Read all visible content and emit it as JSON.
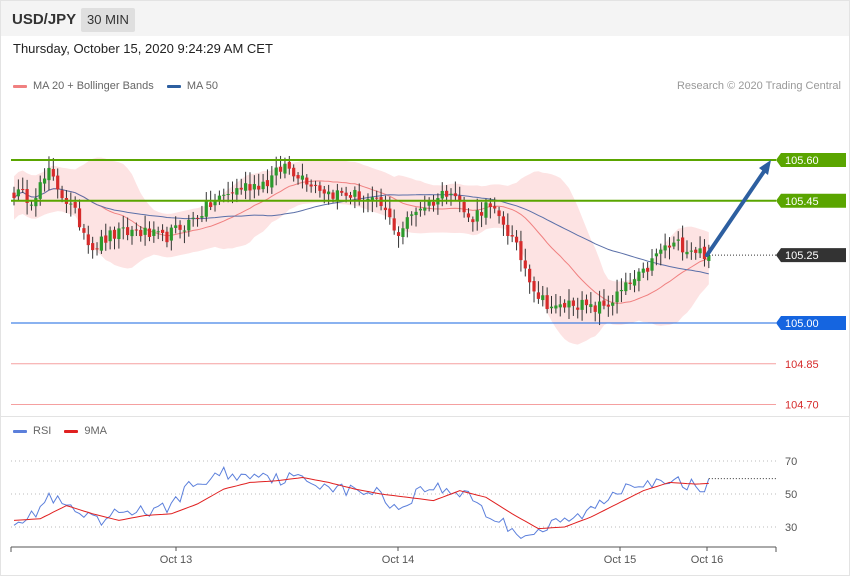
{
  "header": {
    "symbol": "USD/JPY",
    "timeframe": "30 MIN",
    "timestamp": "Thursday, October 15, 2020 9:24:29 AM CET",
    "credit": "Research © 2020 Trading Central"
  },
  "colors": {
    "candle_up": "#2d9a2d",
    "candle_down": "#d62b2b",
    "bollinger_band": "#fde3e3",
    "ma20": "#f08080",
    "ma50": "#5a6fa8",
    "resistance": "#5aa500",
    "support": "#1565e0",
    "secondary_level": "#f5a0a0",
    "last_price": "#333333",
    "projection_arrow": "#2d5fa0",
    "rsi": "#5b7fdb",
    "rsi_ma": "#e02020"
  },
  "chart_data": [
    {
      "type": "candlestick",
      "title": "",
      "legend": [
        {
          "name": "MA 20 + Bollinger Bands",
          "color": "#f08080"
        },
        {
          "name": "MA 50",
          "color": "#2d5fa0"
        }
      ],
      "levels": [
        {
          "value": 105.6,
          "label": "105.60",
          "kind": "resistance"
        },
        {
          "value": 105.45,
          "label": "105.45",
          "kind": "resistance"
        },
        {
          "value": 105.25,
          "label": "105.25",
          "kind": "last"
        },
        {
          "value": 105.0,
          "label": "105.00",
          "kind": "support"
        },
        {
          "value": 104.85,
          "label": "104.85",
          "kind": "secondary"
        },
        {
          "value": 104.7,
          "label": "104.70",
          "kind": "secondary"
        }
      ],
      "projection": {
        "from": 105.25,
        "to": 105.6
      },
      "close_anchors": [
        [
          0,
          105.48
        ],
        [
          4,
          105.46
        ],
        [
          8,
          105.55
        ],
        [
          10,
          105.5
        ],
        [
          14,
          105.4
        ],
        [
          18,
          105.28
        ],
        [
          22,
          105.32
        ],
        [
          28,
          105.34
        ],
        [
          34,
          105.31
        ],
        [
          40,
          105.37
        ],
        [
          46,
          105.45
        ],
        [
          52,
          105.5
        ],
        [
          58,
          105.52
        ],
        [
          62,
          105.58
        ],
        [
          66,
          105.54
        ],
        [
          72,
          105.48
        ],
        [
          78,
          105.47
        ],
        [
          84,
          105.43
        ],
        [
          88,
          105.33
        ],
        [
          92,
          105.42
        ],
        [
          96,
          105.45
        ],
        [
          100,
          105.5
        ],
        [
          104,
          105.38
        ],
        [
          108,
          105.43
        ],
        [
          112,
          105.37
        ],
        [
          116,
          105.24
        ],
        [
          120,
          105.1
        ],
        [
          124,
          105.05
        ],
        [
          128,
          105.08
        ],
        [
          132,
          105.05
        ],
        [
          136,
          105.07
        ],
        [
          140,
          105.13
        ],
        [
          144,
          105.18
        ],
        [
          148,
          105.27
        ],
        [
          152,
          105.29
        ],
        [
          156,
          105.27
        ],
        [
          159,
          105.25
        ]
      ]
    },
    {
      "type": "line",
      "title": "",
      "legend": [
        {
          "name": "RSI",
          "color": "#5b7fdb"
        },
        {
          "name": "9MA",
          "color": "#e02020"
        }
      ],
      "ylim": [
        20,
        80
      ],
      "yticks": [
        70,
        50,
        30
      ],
      "xticks": [
        "Oct 13",
        "Oct 14",
        "Oct 15",
        "Oct 16"
      ],
      "rsi_anchors": [
        [
          0,
          35
        ],
        [
          4,
          36
        ],
        [
          8,
          48
        ],
        [
          12,
          42
        ],
        [
          16,
          36
        ],
        [
          20,
          32
        ],
        [
          24,
          39
        ],
        [
          28,
          41
        ],
        [
          32,
          38
        ],
        [
          36,
          44
        ],
        [
          40,
          54
        ],
        [
          44,
          58
        ],
        [
          48,
          63
        ],
        [
          52,
          60
        ],
        [
          56,
          64
        ],
        [
          60,
          59
        ],
        [
          64,
          60
        ],
        [
          68,
          57
        ],
        [
          72,
          56
        ],
        [
          76,
          52
        ],
        [
          80,
          52
        ],
        [
          84,
          50
        ],
        [
          88,
          40
        ],
        [
          92,
          51
        ],
        [
          96,
          55
        ],
        [
          100,
          50
        ],
        [
          104,
          52
        ],
        [
          108,
          38
        ],
        [
          112,
          32
        ],
        [
          116,
          26
        ],
        [
          120,
          27
        ],
        [
          124,
          32
        ],
        [
          128,
          35
        ],
        [
          132,
          40
        ],
        [
          136,
          48
        ],
        [
          140,
          56
        ],
        [
          144,
          58
        ],
        [
          148,
          55
        ],
        [
          152,
          57
        ],
        [
          156,
          55
        ]
      ],
      "ma_anchors": [
        [
          0,
          34
        ],
        [
          6,
          35
        ],
        [
          12,
          43
        ],
        [
          18,
          38
        ],
        [
          24,
          34
        ],
        [
          30,
          37
        ],
        [
          36,
          38
        ],
        [
          42,
          44
        ],
        [
          48,
          53
        ],
        [
          54,
          57
        ],
        [
          60,
          58
        ],
        [
          66,
          60
        ],
        [
          72,
          57
        ],
        [
          78,
          53
        ],
        [
          84,
          50
        ],
        [
          90,
          48
        ],
        [
          96,
          46
        ],
        [
          102,
          52
        ],
        [
          108,
          48
        ],
        [
          114,
          38
        ],
        [
          120,
          29
        ],
        [
          126,
          30
        ],
        [
          132,
          36
        ],
        [
          138,
          44
        ],
        [
          144,
          52
        ],
        [
          150,
          57
        ],
        [
          156,
          56
        ]
      ]
    }
  ]
}
